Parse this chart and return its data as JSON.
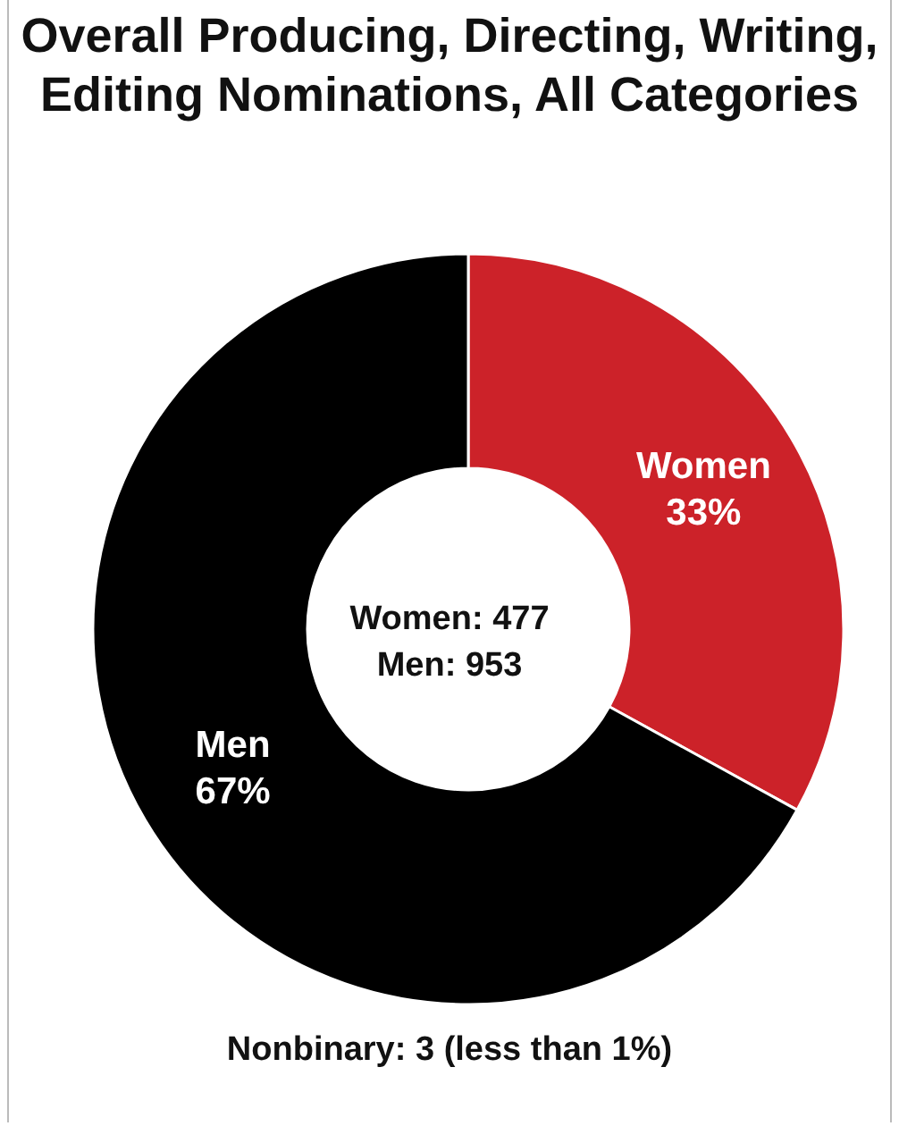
{
  "chart_data": {
    "type": "donut",
    "title": "Overall Producing, Directing, Writing, Editing Nominations, All Categories",
    "categories": [
      "Women",
      "Men"
    ],
    "values": [
      33,
      67
    ],
    "colors": [
      "#cc2229",
      "#000000"
    ],
    "value_labels": [
      "33%",
      "67%"
    ],
    "annotations": [
      "Women: 477",
      "Men: 953",
      "Nonbinary: 3 (less than 1%)"
    ]
  }
}
